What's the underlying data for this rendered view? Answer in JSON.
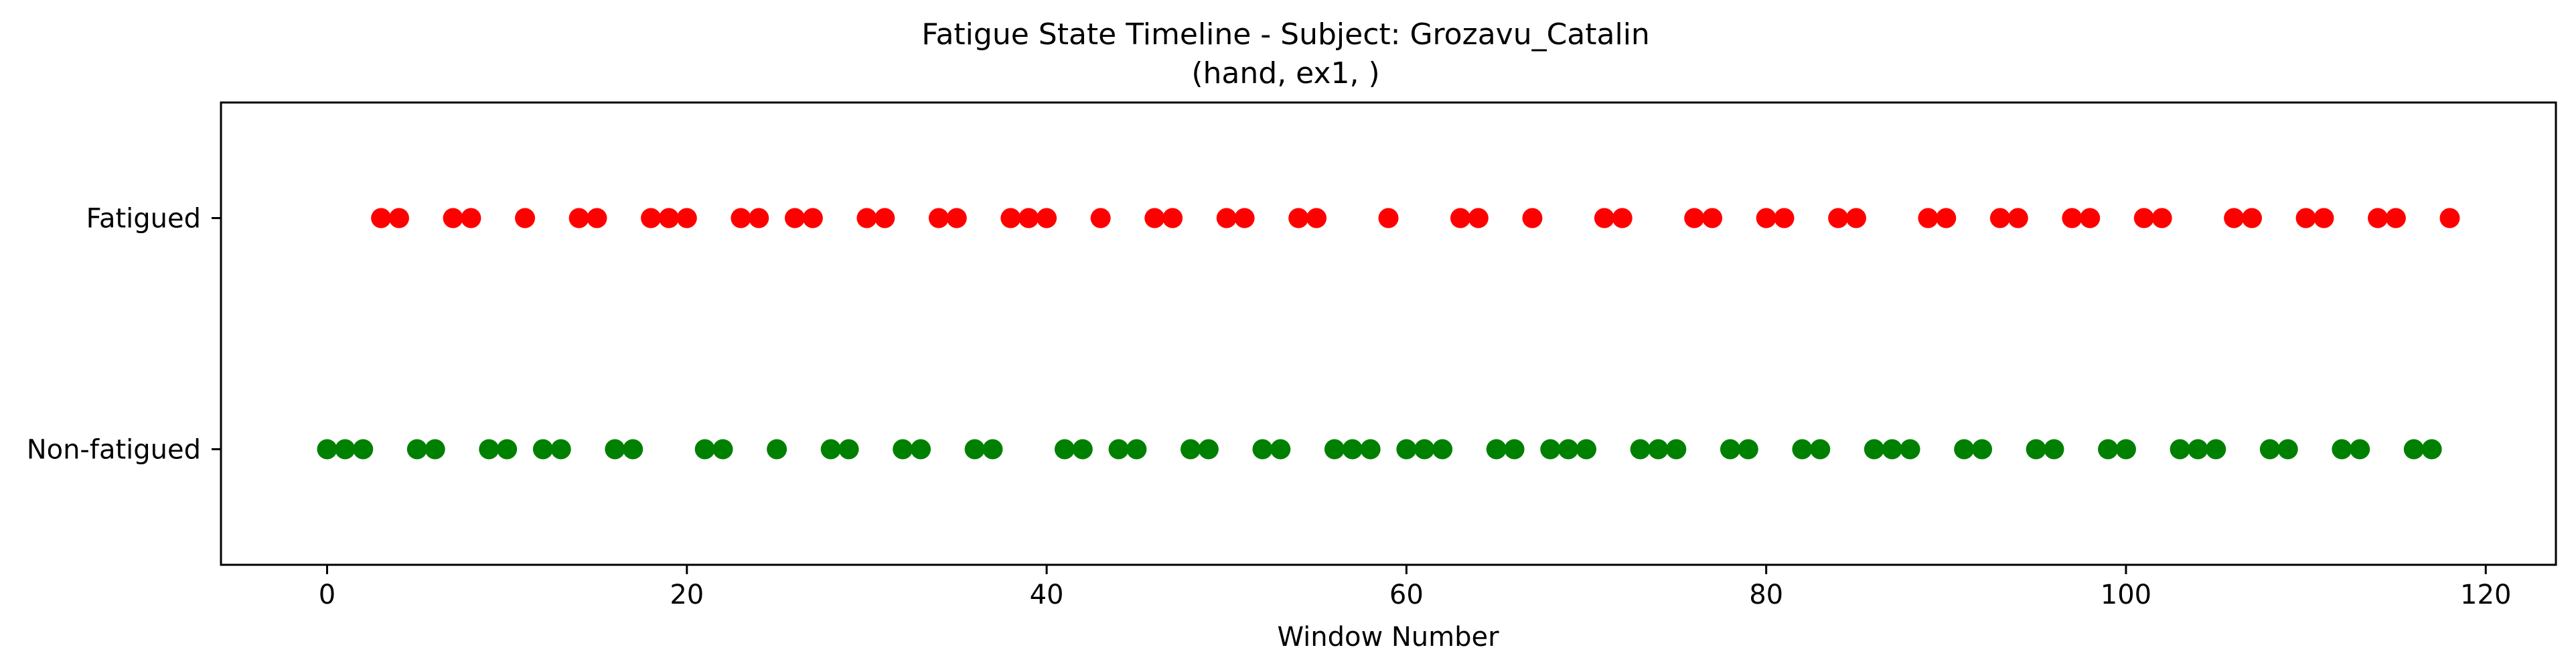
{
  "chart_data": {
    "type": "scatter",
    "title_line1": "Fatigue State Timeline - Subject: Grozavu_Catalin",
    "title_line2": "(hand, ex1, )",
    "xlabel": "Window Number",
    "ylabel": "",
    "xlim": [
      -5.9,
      123.9
    ],
    "ylim": [
      -0.5,
      1.5
    ],
    "x_ticks": [
      0,
      20,
      40,
      60,
      80,
      100,
      120
    ],
    "y_ticks": [
      {
        "value": 1,
        "label": "Fatigued"
      },
      {
        "value": 0,
        "label": "Non-fatigued"
      }
    ],
    "grid": false,
    "legend": "none",
    "series": [
      {
        "state": 1,
        "color": "#ff0000",
        "x": [
          3,
          4,
          7,
          8,
          11,
          14,
          15,
          18,
          19,
          20,
          23,
          24,
          26,
          27,
          30,
          31,
          34,
          35,
          38,
          39,
          40,
          43,
          46,
          47,
          50,
          51,
          54,
          55,
          59,
          63,
          64,
          67,
          71,
          72,
          76,
          77,
          80,
          81,
          84,
          85,
          89,
          90,
          93,
          94,
          97,
          98,
          101,
          102,
          106,
          107,
          110,
          111,
          114,
          115,
          118
        ]
      },
      {
        "state": 0,
        "color": "#008000",
        "x": [
          0,
          1,
          2,
          5,
          6,
          9,
          10,
          12,
          13,
          16,
          17,
          21,
          22,
          25,
          28,
          29,
          32,
          33,
          36,
          37,
          41,
          42,
          44,
          45,
          48,
          49,
          52,
          53,
          56,
          57,
          58,
          60,
          61,
          62,
          65,
          66,
          68,
          69,
          70,
          73,
          74,
          75,
          78,
          79,
          82,
          83,
          86,
          87,
          88,
          91,
          92,
          95,
          96,
          99,
          100,
          103,
          104,
          105,
          108,
          109,
          112,
          113,
          116,
          117
        ]
      }
    ]
  }
}
